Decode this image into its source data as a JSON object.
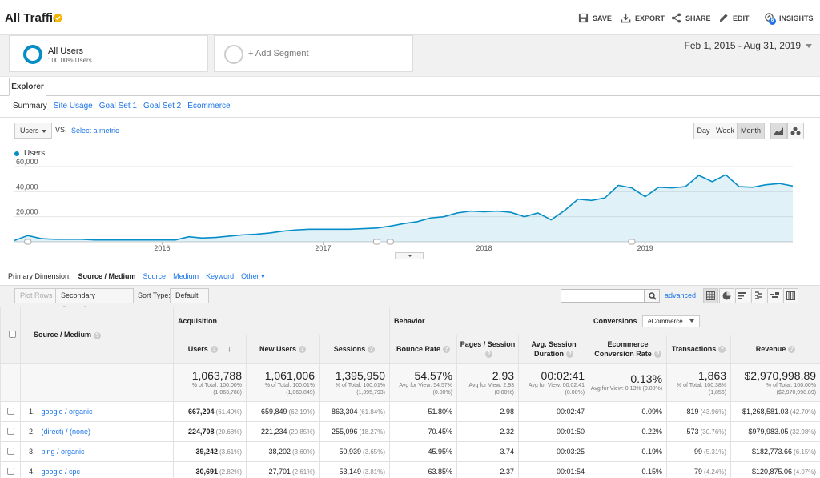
{
  "header": {
    "title": "All Traffic",
    "actions": {
      "save": "SAVE",
      "export": "EXPORT",
      "share": "SHARE",
      "edit": "EDIT",
      "insights": "INSIGHTS",
      "insights_badge": "6"
    }
  },
  "segments": {
    "active": {
      "name": "All Users",
      "sub": "100.00% Users"
    },
    "add": "+ Add Segment"
  },
  "date_range": "Feb 1, 2015 - Aug 31, 2019",
  "tabs": {
    "explorer": "Explorer"
  },
  "subtabs": [
    "Summary",
    "Site Usage",
    "Goal Set 1",
    "Goal Set 2",
    "Ecommerce"
  ],
  "chart_controls": {
    "metric": "Users",
    "vs": "VS.",
    "select_metric": "Select a metric",
    "periods": [
      "Day",
      "Week",
      "Month"
    ],
    "active_period": "Month"
  },
  "chart_data": {
    "type": "area",
    "series": [
      {
        "name": "Users",
        "color": "#058dc7"
      }
    ],
    "yticks": [
      "60,000",
      "40,000",
      "20,000"
    ],
    "ylim": [
      0,
      60000
    ],
    "xticks": [
      "2016",
      "2017",
      "2018",
      "2019"
    ],
    "x_start": "2015-02",
    "values": [
      1000,
      5000,
      2500,
      2000,
      2000,
      2000,
      1500,
      1500,
      1500,
      1500,
      1500,
      1500,
      1500,
      4000,
      3000,
      3500,
      4500,
      5500,
      6000,
      7000,
      8500,
      9500,
      10000,
      10000,
      10000,
      10000,
      10500,
      11000,
      12500,
      14500,
      16000,
      19000,
      20000,
      23000,
      24500,
      24000,
      24500,
      23500,
      20000,
      23000,
      17500,
      25000,
      34000,
      33000,
      35000,
      45000,
      43000,
      36000,
      43500,
      43000,
      44000,
      53000,
      48000,
      53500,
      44000,
      43500,
      45500,
      46500,
      44500
    ]
  },
  "primary_dimension": {
    "label": "Primary Dimension:",
    "options": [
      "Source / Medium",
      "Source",
      "Medium",
      "Keyword",
      "Other"
    ],
    "active": "Source / Medium"
  },
  "toolbar": {
    "plot_rows": "Plot Rows",
    "secondary_dimension": "Secondary dimension",
    "sort_type_label": "Sort Type:",
    "sort_type": "Default",
    "advanced": "advanced"
  },
  "table": {
    "dimension_header": "Source / Medium",
    "groups": {
      "acquisition": "Acquisition",
      "behavior": "Behavior",
      "conversions": "Conversions",
      "conversions_select": "eCommerce"
    },
    "columns": [
      "Users",
      "New Users",
      "Sessions",
      "Bounce Rate",
      "Pages / Session",
      "Avg. Session Duration",
      "Ecommerce Conversion Rate",
      "Transactions",
      "Revenue"
    ],
    "totals": [
      {
        "big": "1,063,788",
        "sub": "% of Total: 100.00% (1,063,788)"
      },
      {
        "big": "1,061,006",
        "sub": "% of Total: 100.01% (1,060,849)"
      },
      {
        "big": "1,395,950",
        "sub": "% of Total: 100.01% (1,395,793)"
      },
      {
        "big": "54.57%",
        "sub": "Avg for View: 54.57% (0.00%)"
      },
      {
        "big": "2.93",
        "sub": "Avg for View: 2.93 (0.00%)"
      },
      {
        "big": "00:02:41",
        "sub": "Avg for View: 00:02:41 (0.00%)"
      },
      {
        "big": "0.13%",
        "sub": "Avg for View: 0.13% (0.00%)"
      },
      {
        "big": "1,863",
        "sub": "% of Total: 100.38% (1,856)"
      },
      {
        "big": "$2,970,998.89",
        "sub": "% of Total: 100.00% ($2,970,998.89)"
      }
    ],
    "rows": [
      {
        "num": "1.",
        "source": "google / organic",
        "users": "667,204",
        "users_pct": "(61.40%)",
        "new_users": "659,849",
        "new_users_pct": "(62.19%)",
        "sessions": "863,304",
        "sessions_pct": "(61.84%)",
        "bounce": "51.80%",
        "pps": "2.98",
        "dur": "00:02:47",
        "ecr": "0.09%",
        "trans": "819",
        "trans_pct": "(43.96%)",
        "rev": "$1,268,581.03",
        "rev_pct": "(42.70%)"
      },
      {
        "num": "2.",
        "source": "(direct) / (none)",
        "users": "224,708",
        "users_pct": "(20.68%)",
        "new_users": "221,234",
        "new_users_pct": "(20.85%)",
        "sessions": "255,096",
        "sessions_pct": "(18.27%)",
        "bounce": "70.45%",
        "pps": "2.32",
        "dur": "00:01:50",
        "ecr": "0.22%",
        "trans": "573",
        "trans_pct": "(30.76%)",
        "rev": "$979,983.05",
        "rev_pct": "(32.98%)"
      },
      {
        "num": "3.",
        "source": "bing / organic",
        "users": "39,242",
        "users_pct": "(3.61%)",
        "new_users": "38,202",
        "new_users_pct": "(3.60%)",
        "sessions": "50,939",
        "sessions_pct": "(3.65%)",
        "bounce": "45.95%",
        "pps": "3.74",
        "dur": "00:03:25",
        "ecr": "0.19%",
        "trans": "99",
        "trans_pct": "(5.31%)",
        "rev": "$182,773.66",
        "rev_pct": "(6.15%)"
      },
      {
        "num": "4.",
        "source": "google / cpc",
        "users": "30,691",
        "users_pct": "(2.82%)",
        "new_users": "27,701",
        "new_users_pct": "(2.61%)",
        "sessions": "53,149",
        "sessions_pct": "(3.81%)",
        "bounce": "63.85%",
        "pps": "2.37",
        "dur": "00:01:54",
        "ecr": "0.15%",
        "trans": "79",
        "trans_pct": "(4.24%)",
        "rev": "$120,875.06",
        "rev_pct": "(4.07%)"
      }
    ]
  }
}
